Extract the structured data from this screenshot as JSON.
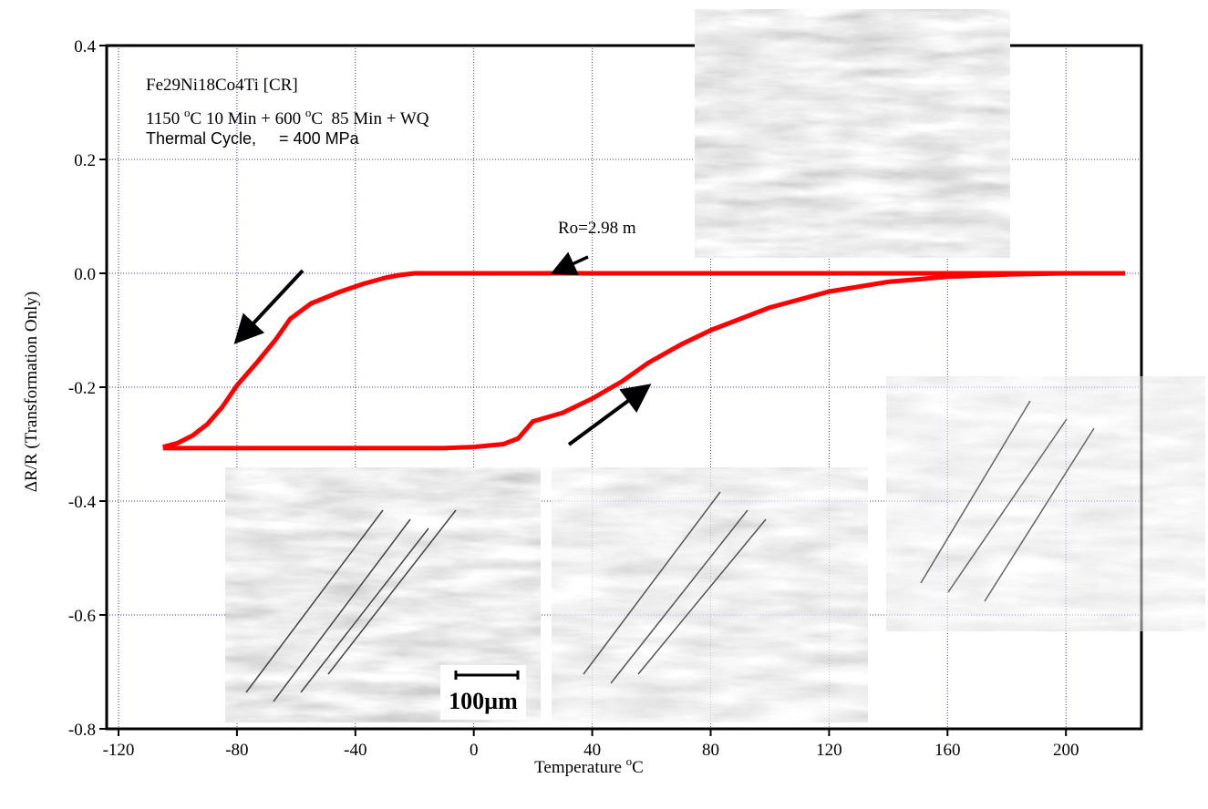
{
  "chart_data": {
    "type": "line",
    "x_label": [
      "Temperature ",
      "o",
      "C"
    ],
    "y_label": "ΔR/R (Transformation Only)",
    "annotations": {
      "alloy": "Fe29Ni18Co4Ti [CR]",
      "treatment": [
        "1150 ",
        "o",
        "C 10 Min + 600 ",
        "o",
        "C  85 Min + WQ"
      ],
      "stress": "Thermal Cycle,     = 400 MPa",
      "resistance": "Ro=2.98 m",
      "scale_bar": "100µm"
    },
    "xlim": [
      -124,
      225.5
    ],
    "xticks": [
      -120,
      -80,
      -40,
      0,
      40,
      80,
      120,
      160,
      200
    ],
    "ylim": [
      -0.8,
      0.4
    ],
    "yticks": [
      0.4,
      0.2,
      {
        "value": 0,
        "label": "0.0"
      },
      -0.2,
      -0.4,
      -0.6,
      -0.8
    ],
    "grid": true,
    "series": [
      {
        "color": "#ff0000",
        "x": [
          220,
          200,
          160,
          120,
          80,
          40,
          0,
          -20,
          -25,
          -30,
          -37,
          -45,
          -55,
          -62,
          -67,
          -73,
          -80,
          -85,
          -90,
          -95,
          -100,
          -105
        ],
        "values": [
          0,
          0,
          0,
          0,
          0,
          0,
          0,
          0,
          -0.003,
          -0.008,
          -0.018,
          -0.032,
          -0.053,
          -0.08,
          -0.117,
          -0.155,
          -0.197,
          -0.235,
          -0.265,
          -0.285,
          -0.298,
          -0.305
        ]
      },
      {
        "color": "#ff0000",
        "x": [
          -105,
          -80,
          -40,
          -10,
          0,
          10,
          15,
          20,
          30,
          40,
          50,
          59,
          70,
          80,
          100,
          120,
          140,
          160,
          180,
          200,
          220
        ],
        "values": [
          -0.307,
          -0.307,
          -0.307,
          -0.307,
          -0.305,
          -0.3,
          -0.29,
          -0.26,
          -0.245,
          -0.22,
          -0.19,
          -0.157,
          -0.125,
          -0.1,
          -0.06,
          -0.032,
          -0.015,
          -0.006,
          -0.002,
          0,
          0
        ]
      }
    ]
  }
}
